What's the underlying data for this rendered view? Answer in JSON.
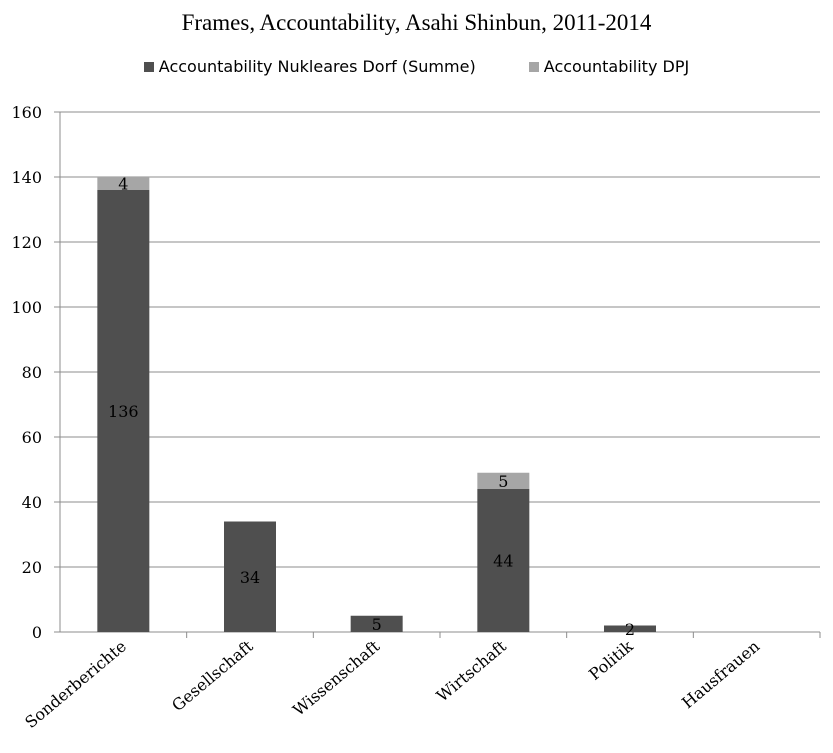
{
  "chart_data": {
    "type": "bar",
    "stacked": true,
    "title": "Frames, Accountability, Asahi Shinbun, 2011-2014",
    "categories": [
      "Sonderberichte",
      "Gesellschaft",
      "Wissenschaft",
      "Wirtschaft",
      "Politik",
      "Hausfrauen"
    ],
    "series": [
      {
        "name": "Accountability Nukleares Dorf (Summe)",
        "color": "#4f4f4f",
        "values": [
          136,
          34,
          5,
          44,
          2,
          0
        ]
      },
      {
        "name": "Accountability DPJ",
        "color": "#a6a6a6",
        "values": [
          4,
          0,
          0,
          5,
          0,
          0
        ]
      }
    ],
    "data_labels": [
      [
        "136",
        "34",
        "5",
        "44",
        "2",
        ""
      ],
      [
        "4",
        "",
        "",
        "5",
        "",
        ""
      ]
    ],
    "ylim": [
      0,
      160
    ],
    "yticks": [
      "0",
      "20",
      "40",
      "60",
      "80",
      "100",
      "120",
      "140",
      "160"
    ],
    "grid": true,
    "legend_position": "top"
  }
}
